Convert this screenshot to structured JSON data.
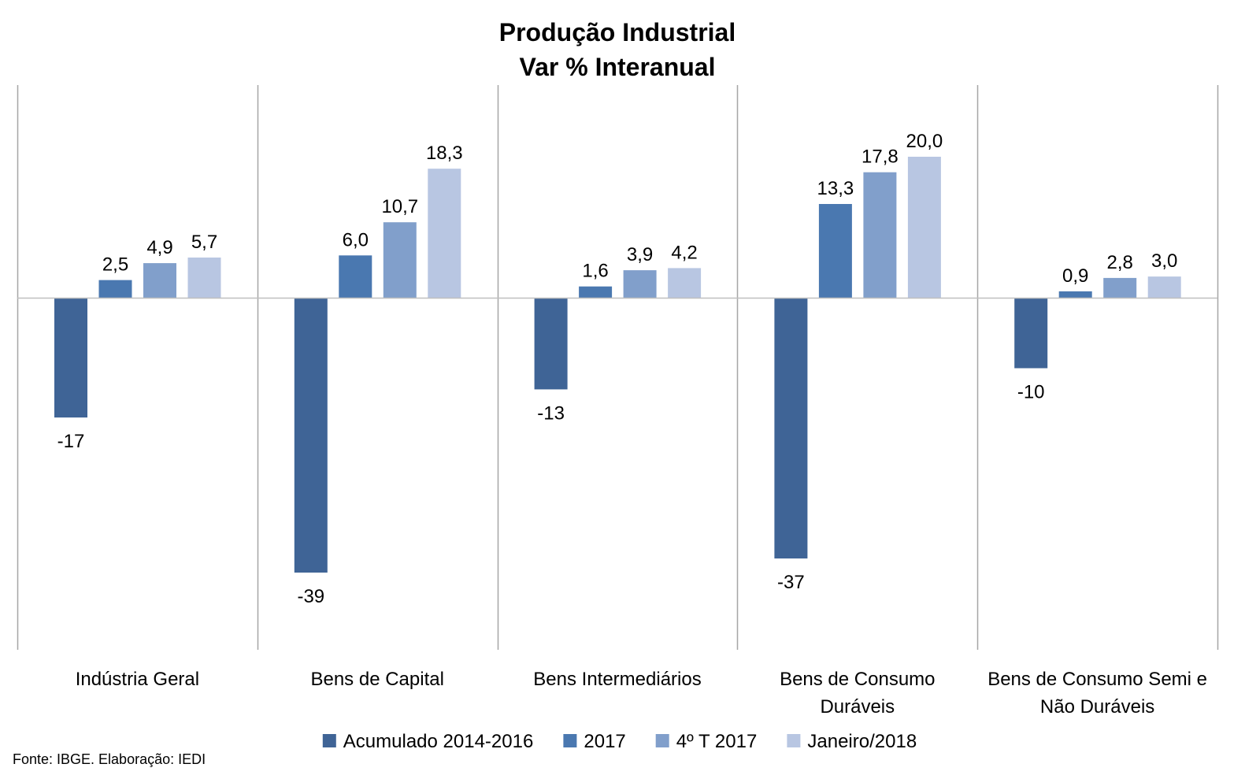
{
  "chart_data": {
    "type": "bar",
    "title_lines": [
      "Produção Industrial",
      "Var % Interanual"
    ],
    "categories": [
      [
        "Indústria Geral"
      ],
      [
        "Bens de Capital"
      ],
      [
        "Bens Intermediários"
      ],
      [
        "Bens de Consumo",
        "Duráveis"
      ],
      [
        "Bens de Consumo Semi e",
        "Não Duráveis"
      ]
    ],
    "series": [
      {
        "name": "Acumulado 2014-2016",
        "color": "#3f6496",
        "values": [
          -17,
          -39,
          -13,
          -37,
          -10
        ],
        "labels": [
          "-17",
          "-39",
          "-13",
          "-37",
          "-10"
        ]
      },
      {
        "name": "2017",
        "color": "#4a78b0",
        "values": [
          2.5,
          6.0,
          1.6,
          13.3,
          0.9
        ],
        "labels": [
          "2,5",
          "6,0",
          "1,6",
          "13,3",
          "0,9"
        ]
      },
      {
        "name": "4º T 2017",
        "color": "#819fcb",
        "values": [
          4.9,
          10.7,
          3.9,
          17.8,
          2.8
        ],
        "labels": [
          "4,9",
          "10,7",
          "3,9",
          "17,8",
          "2,8"
        ]
      },
      {
        "name": "Janeiro/2018",
        "color": "#b8c6e2",
        "values": [
          5.7,
          18.3,
          4.2,
          20.0,
          3.0
        ],
        "labels": [
          "5,7",
          "18,3",
          "4,2",
          "20,0",
          "3,0"
        ]
      }
    ],
    "ylim": [
      -50,
      30
    ],
    "legend_position": "bottom",
    "grid": false
  },
  "source": "Fonte: IBGE. Elaboração: IEDI"
}
